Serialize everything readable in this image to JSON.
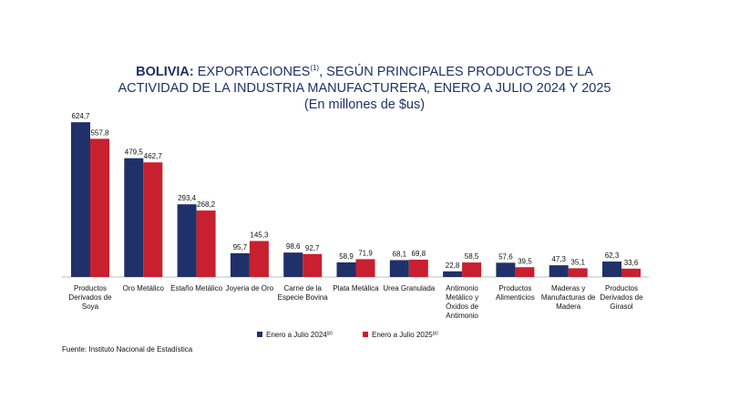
{
  "title": {
    "bold_prefix": "BOLIVIA:",
    "line1_rest": " EXPORTACIONES",
    "line1_sup": "(1)",
    "line1_end": ", SEGÚN PRINCIPALES PRODUCTOS DE LA",
    "line2": "ACTIVIDAD DE LA INDUSTRIA MANUFACTURERA, ENERO A JULIO 2024 Y 2025",
    "line3": "(En millones de $us)"
  },
  "source": "Fuente: Instituto Nacional de Estadística",
  "colors": {
    "series_2024": "#1f3168",
    "series_2025": "#c8202f",
    "title": "#1f3168"
  },
  "chart_data": {
    "type": "bar",
    "title": "BOLIVIA: EXPORTACIONES(1), SEGÚN PRINCIPALES PRODUCTOS DE LA ACTIVIDAD DE LA INDUSTRIA MANUFACTURERA, ENERO A JULIO 2024 Y 2025",
    "subtitle": "(En millones de $us)",
    "xlabel": "",
    "ylabel": "",
    "ylim": [
      0,
      640
    ],
    "grid": false,
    "legend_position": "bottom",
    "categories": [
      [
        "Productos",
        "Derivados de",
        "Soya"
      ],
      [
        "Oro Metálico"
      ],
      [
        "Estaño Metálico"
      ],
      [
        "Joyeria de Oro"
      ],
      [
        "Carne de la",
        "Especie Bovina"
      ],
      [
        "Plata Metálica"
      ],
      [
        "Urea Granulada"
      ],
      [
        "Antimonio",
        "Metálico y",
        "Óxidos de",
        "Antimonio"
      ],
      [
        "Productos",
        "Alimenticios"
      ],
      [
        "Maderas y",
        "Manufacturas de",
        "Madera"
      ],
      [
        "Productos",
        "Derivados de",
        "Girasol"
      ]
    ],
    "series": [
      {
        "name": "Enero a Julio 2024",
        "name_sup": "(p)",
        "color": "#1f3168",
        "values": [
          624.7,
          479.5,
          293.4,
          95.7,
          98.6,
          58.9,
          68.1,
          22.8,
          57.6,
          47.3,
          62.3
        ],
        "labels": [
          "624,7",
          "479,5",
          "293,4",
          "95,7",
          "98,6",
          "58,9",
          "68,1",
          "22,8",
          "57,6",
          "47,3",
          "62,3"
        ]
      },
      {
        "name": "Enero a Julio  2025",
        "name_sup": "(p)",
        "color": "#c8202f",
        "values": [
          557.8,
          462.7,
          268.2,
          145.3,
          92.7,
          71.9,
          69.8,
          58.5,
          39.5,
          35.1,
          33.6
        ],
        "labels": [
          "557,8",
          "462,7",
          "268,2",
          "145,3",
          "92,7",
          "71,9",
          "69,8",
          "58,5",
          "39,5",
          "35,1",
          "33,6"
        ]
      }
    ]
  }
}
